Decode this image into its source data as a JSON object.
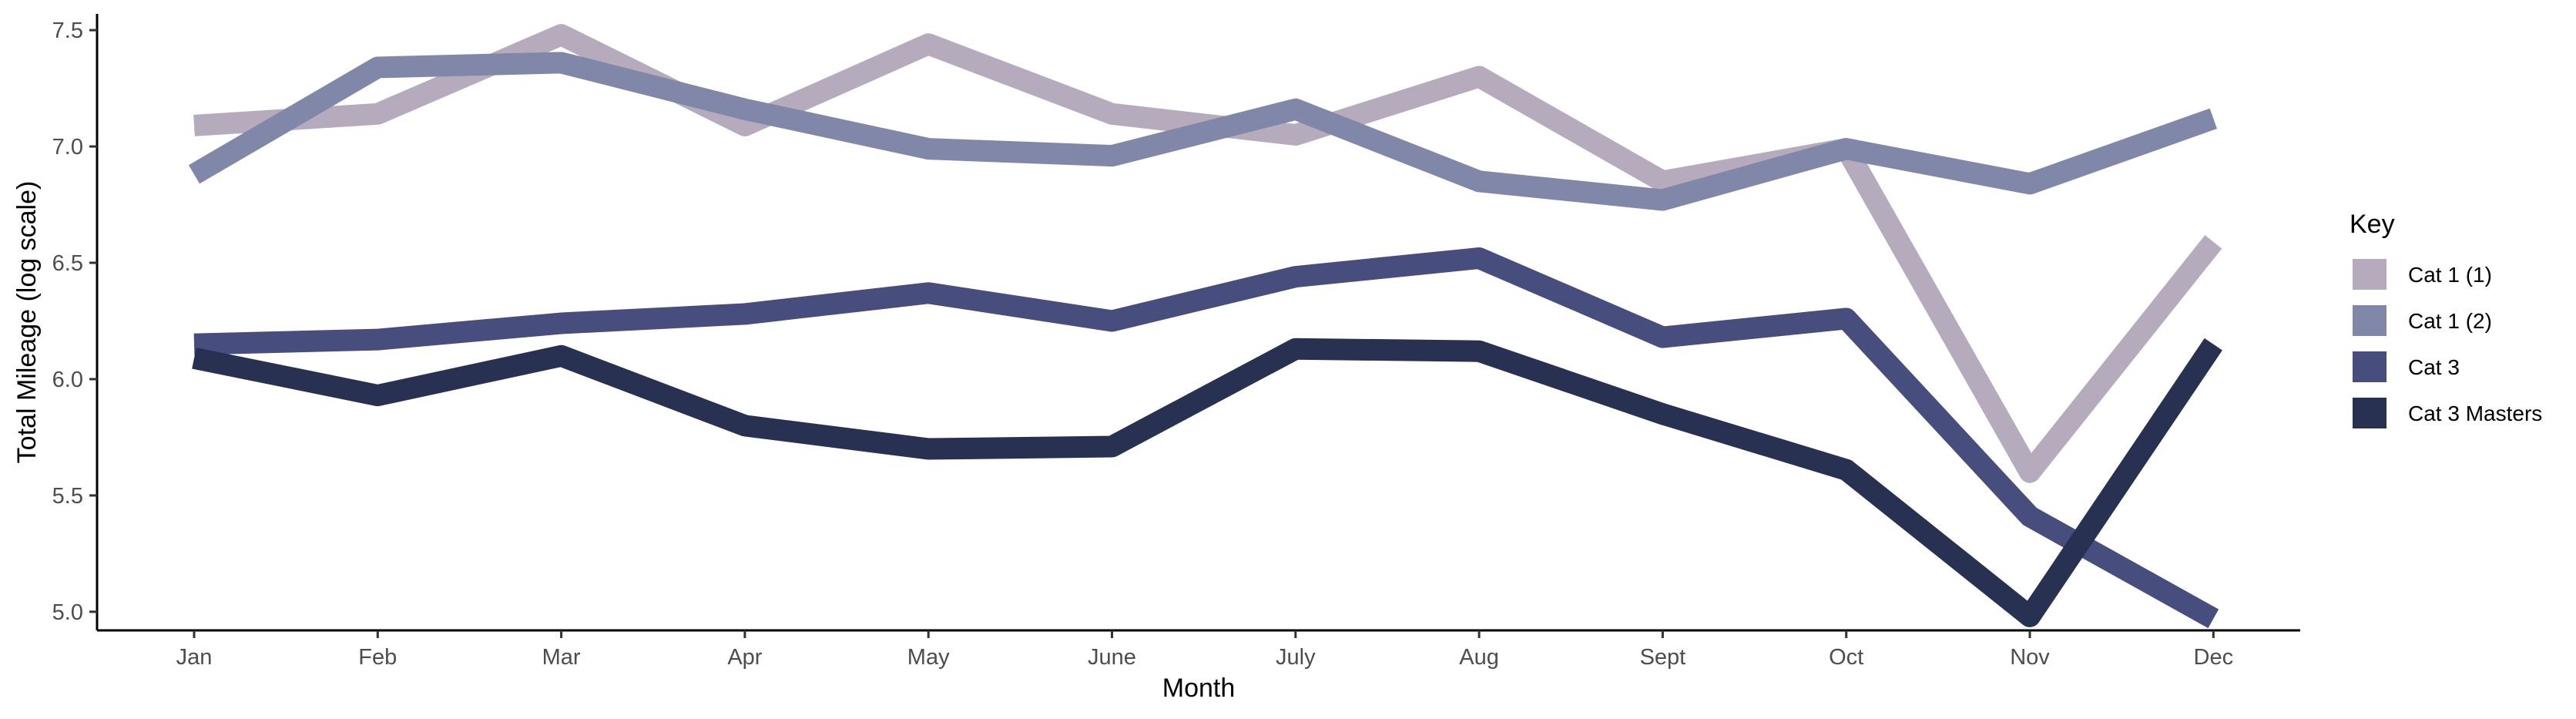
{
  "chart_data": {
    "type": "line",
    "xlabel": "Month",
    "ylabel": "Total Mileage (log scale)",
    "categories": [
      "Jan",
      "Feb",
      "Mar",
      "Apr",
      "May",
      "June",
      "July",
      "Aug",
      "Sept",
      "Oct",
      "Nov",
      "Dec"
    ],
    "ylim": [
      4.92,
      7.57
    ],
    "yticks": [
      5.0,
      5.5,
      6.0,
      6.5,
      7.0,
      7.5
    ],
    "ytick_labels": [
      "5.0",
      "5.5",
      "6.0",
      "6.5",
      "7.0",
      "7.5"
    ],
    "grid": false,
    "legend": {
      "title": "Key",
      "position": "right"
    },
    "series": [
      {
        "name": "Cat 1 (1)",
        "color": "#b5abbd",
        "values": [
          7.09,
          7.14,
          7.48,
          7.09,
          7.44,
          7.14,
          7.05,
          7.3,
          6.85,
          6.99,
          5.6,
          6.59
        ]
      },
      {
        "name": "Cat 1 (2)",
        "color": "#8087a8",
        "values": [
          6.88,
          7.34,
          7.36,
          7.16,
          6.99,
          6.96,
          7.16,
          6.85,
          6.77,
          6.99,
          6.84,
          7.12
        ]
      },
      {
        "name": "Cat 3",
        "color": "#474d7d",
        "values": [
          6.15,
          6.17,
          6.24,
          6.28,
          6.37,
          6.25,
          6.44,
          6.52,
          6.18,
          6.26,
          5.41,
          4.97
        ]
      },
      {
        "name": "Cat 3 Masters",
        "color": "#283151",
        "values": [
          6.09,
          5.93,
          6.1,
          5.8,
          5.7,
          5.71,
          6.13,
          6.12,
          5.85,
          5.61,
          4.98,
          6.15
        ]
      }
    ]
  }
}
